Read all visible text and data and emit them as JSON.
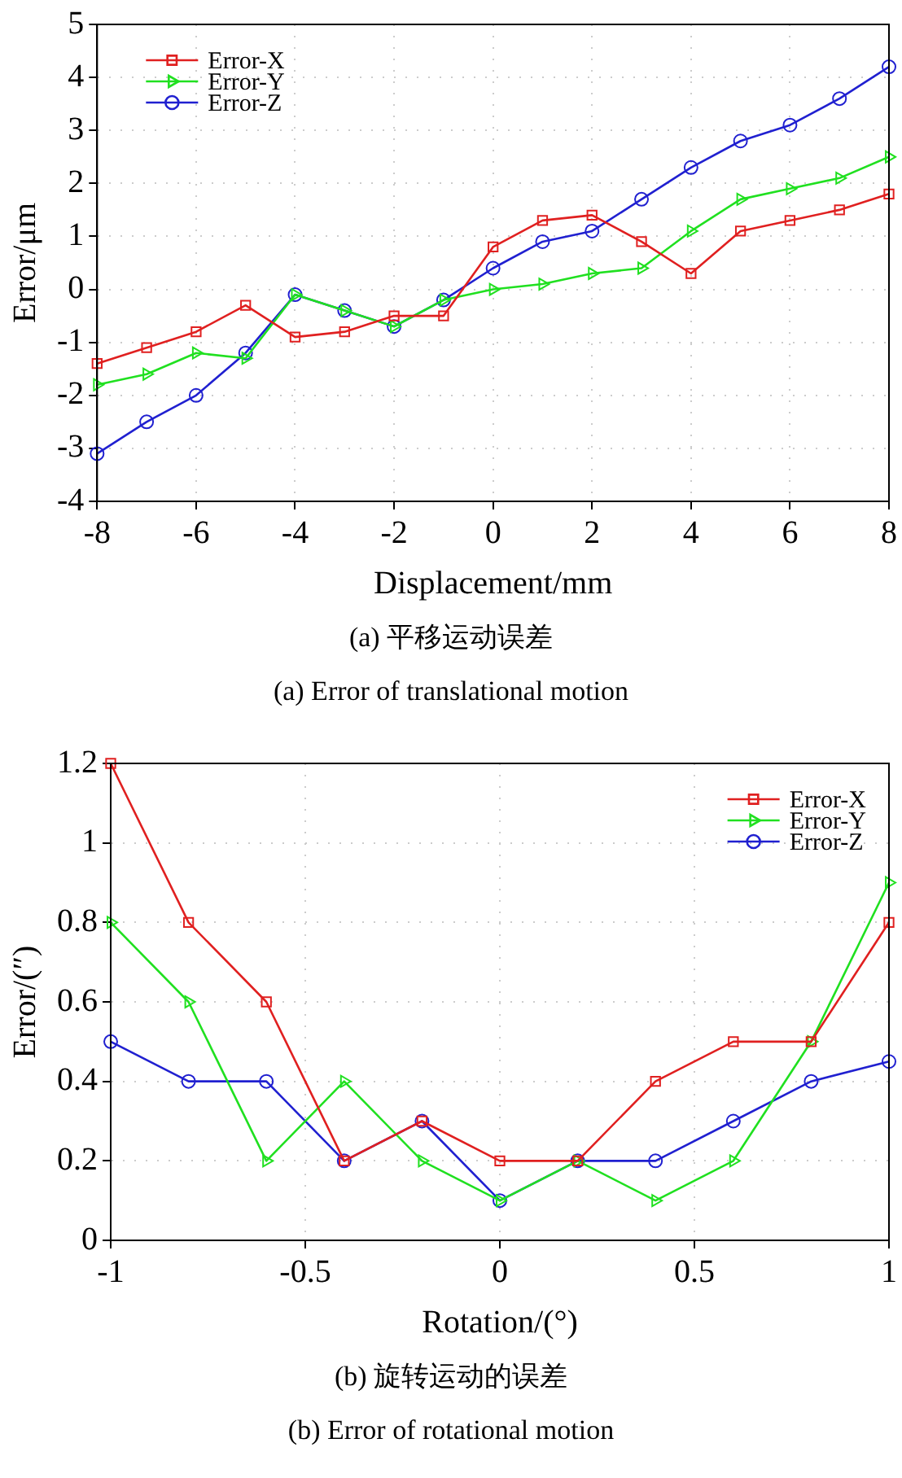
{
  "chart_data": [
    {
      "type": "line",
      "xlabel": "Displacement/mm",
      "ylabel": "Error/μm",
      "x": [
        -8,
        -7,
        -6,
        -5,
        -4,
        -3,
        -2,
        -1,
        0,
        1,
        2,
        3,
        4,
        5,
        6,
        7,
        8
      ],
      "series": [
        {
          "name": "Error-X",
          "color": "#e02020",
          "marker": "square",
          "values": [
            -1.4,
            -1.1,
            -0.8,
            -0.3,
            -0.9,
            -0.8,
            -0.5,
            -0.5,
            0.8,
            1.3,
            1.4,
            0.9,
            0.3,
            1.1,
            1.3,
            1.5,
            1.8
          ]
        },
        {
          "name": "Error-Y",
          "color": "#20e020",
          "marker": "triangle",
          "values": [
            -1.8,
            -1.6,
            -1.2,
            -1.3,
            -0.1,
            -0.4,
            -0.7,
            -0.2,
            0,
            0.1,
            0.3,
            0.4,
            1.1,
            1.7,
            1.9,
            2.1,
            2.5
          ]
        },
        {
          "name": "Error-Z",
          "color": "#2020d0",
          "marker": "circle",
          "values": [
            -3.1,
            -2.5,
            -2,
            -1.2,
            -0.1,
            -0.4,
            -0.7,
            -0.2,
            0.4,
            0.9,
            1.1,
            1.7,
            2.3,
            2.8,
            3.1,
            3.6,
            4.2
          ]
        }
      ],
      "xlim": [
        -8,
        8
      ],
      "xticks": [
        -8,
        -6,
        -4,
        -2,
        0,
        2,
        4,
        6,
        8
      ],
      "ylim": [
        -4,
        5
      ],
      "yticks": [
        -4,
        -3,
        -2,
        -1,
        0,
        1,
        2,
        3,
        4,
        5
      ],
      "grid": true,
      "legend": "top left",
      "annotations": [
        "(a) 平移运动误差",
        "(a) Error of translational motion"
      ]
    },
    {
      "type": "line",
      "xlabel": "Rotation/(°)",
      "ylabel": "Error/(″)",
      "x": [
        -1,
        -0.8,
        -0.6,
        -0.4,
        -0.2,
        0,
        0.2,
        0.4,
        0.6,
        0.8,
        1
      ],
      "series": [
        {
          "name": "Error-X",
          "color": "#e02020",
          "marker": "square",
          "values": [
            1.2,
            0.8,
            0.6,
            0.2,
            0.3,
            0.2,
            0.2,
            0.4,
            0.5,
            0.5,
            0.8
          ]
        },
        {
          "name": "Error-Y",
          "color": "#20e020",
          "marker": "triangle",
          "values": [
            0.8,
            0.6,
            0.2,
            0.4,
            0.2,
            0.1,
            0.2,
            0.1,
            0.2,
            0.5,
            0.9
          ]
        },
        {
          "name": "Error-Z",
          "color": "#2020d0",
          "marker": "circle",
          "values": [
            0.5,
            0.4,
            0.4,
            0.2,
            0.3,
            0.1,
            0.2,
            0.2,
            0.3,
            0.4,
            0.45
          ]
        }
      ],
      "xlim": [
        -1,
        1
      ],
      "xticks": [
        -1,
        -0.5,
        0,
        0.5,
        1
      ],
      "ylim": [
        0,
        1.2
      ],
      "yticks": [
        0,
        0.2,
        0.4,
        0.6,
        0.8,
        1,
        1.2
      ],
      "grid": true,
      "legend": "top right",
      "annotations": [
        "(b) 旋转运动的误差",
        "(b) Error of rotational motion"
      ]
    }
  ]
}
